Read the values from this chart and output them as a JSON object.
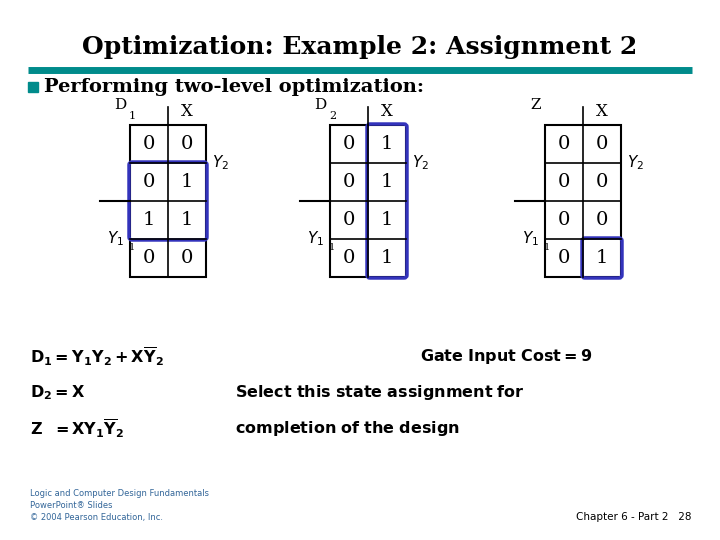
{
  "title": "Optimization: Example 2: Assignment 2",
  "title_fontsize": 18,
  "background_color": "#ffffff",
  "teal_line_color": "#008B8B",
  "bullet_color": "#008B8B",
  "bullet_text": "Performing two-level optimization:",
  "bullet_fontsize": 14,
  "table1_values": [
    [
      "0",
      "0"
    ],
    [
      "0",
      "1"
    ],
    [
      "1",
      "1"
    ],
    [
      "0",
      "0"
    ]
  ],
  "table1_highlight_cells": [
    [
      1,
      1
    ],
    [
      2,
      0
    ],
    [
      2,
      1
    ]
  ],
  "table1_label": "D",
  "table1_sub": "1",
  "table2_values": [
    [
      "0",
      "1"
    ],
    [
      "0",
      "1"
    ],
    [
      "0",
      "1"
    ],
    [
      "0",
      "1"
    ]
  ],
  "table2_highlight_cells": [
    [
      0,
      1
    ],
    [
      1,
      1
    ],
    [
      2,
      1
    ],
    [
      3,
      1
    ]
  ],
  "table2_label": "D",
  "table2_sub": "2",
  "table3_values": [
    [
      "0",
      "0"
    ],
    [
      "0",
      "0"
    ],
    [
      "0",
      "0"
    ],
    [
      "0",
      "1"
    ]
  ],
  "table3_highlight_cells": [
    [
      3,
      1
    ]
  ],
  "table3_label": "Z",
  "table3_sub": "",
  "highlight_color": "#3333bb",
  "footer_left": "Logic and Computer Design Fundamentals\nPowerPoint® Slides\n© 2004 Pearson Education, Inc.",
  "footer_right": "Chapter 6 - Part 2   28"
}
